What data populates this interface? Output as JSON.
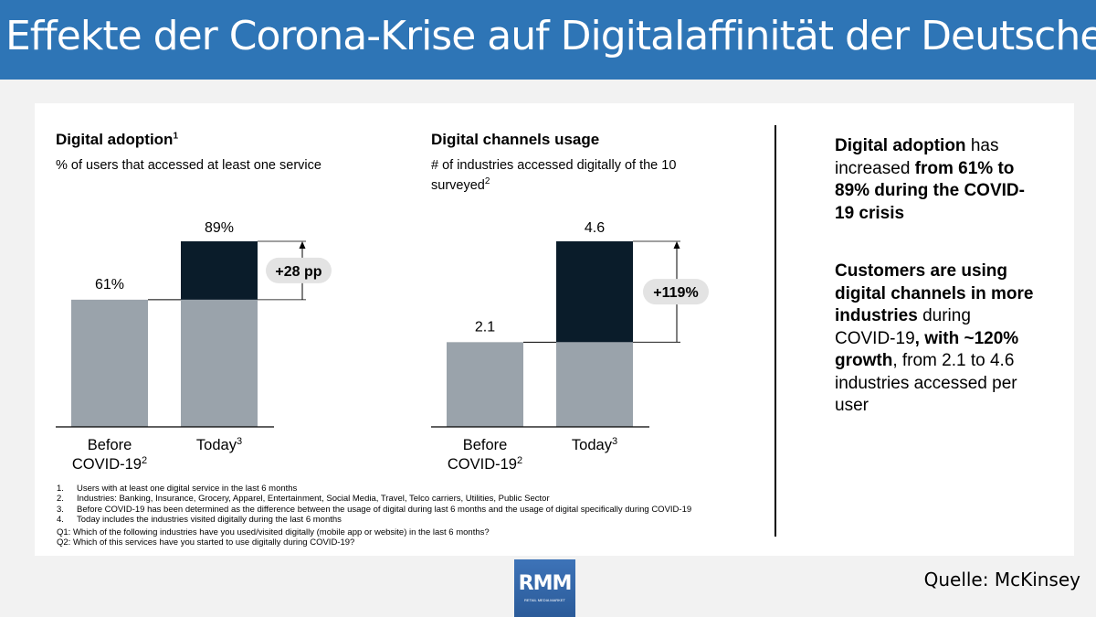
{
  "banner": {
    "title": "Effekte der Corona-Krise auf Digitalaffinität der Deutschen"
  },
  "charts": {
    "left": {
      "title": "Digital adoption",
      "title_sup": "1",
      "subtitle": "% of users that accessed at least one service"
    },
    "right": {
      "title": "Digital channels usage",
      "subtitle_line1": "# of industries accessed digitally of the 10",
      "subtitle_line2": "surveyed",
      "subtitle_sup": "2"
    }
  },
  "chart_data": [
    {
      "type": "bar",
      "title": "Digital adoption",
      "categories": [
        "Before COVID-19",
        "Today"
      ],
      "category_sups": [
        "2",
        "3"
      ],
      "values": [
        61,
        89
      ],
      "value_labels": [
        "61%",
        "89%"
      ],
      "delta_label": "+28 pp",
      "ylim": [
        0,
        100
      ],
      "colors": {
        "base": "#9aa3ab",
        "increase": "#0a1c2a"
      }
    },
    {
      "type": "bar",
      "title": "Digital channels usage",
      "categories": [
        "Before COVID-19",
        "Today"
      ],
      "category_sups": [
        "2",
        "3"
      ],
      "values": [
        2.1,
        4.6
      ],
      "value_labels": [
        "2.1",
        "4.6"
      ],
      "delta_label": "+119%",
      "ylim": [
        0,
        5.6
      ],
      "colors": {
        "base": "#9aa3ab",
        "increase": "#0a1c2a"
      }
    }
  ],
  "side": {
    "block1": {
      "b1": "Digital adoption",
      "t1": " has increased ",
      "b2": "from 61% to 89% during the COVID-19 crisis"
    },
    "block2": {
      "b1": "Customers are using digital channels in more industries",
      "t1": " during COVID-19",
      "b2": ", with ~120% growth",
      "t2": ", from 2.1 to 4.6 industries accessed per user"
    }
  },
  "footnotes": [
    {
      "num": "1.",
      "text": "Users with at least one digital service in the last 6 months"
    },
    {
      "num": "2.",
      "text": "Industries: Banking, Insurance, Grocery, Apparel, Entertainment, Social Media, Travel, Telco carriers, Utilities, Public Sector"
    },
    {
      "num": "3.",
      "text": "Before COVID-19 has been determined as the difference between the usage of digital during last 6 months and the usage of digital specifically during COVID-19"
    },
    {
      "num": "4.",
      "text": "Today includes the industries visited digitally during the last 6 months"
    }
  ],
  "questions": [
    "Q1: Which of the following industries have you used/visited digitally (mobile app or website) in the last 6 months?",
    "Q2: Which of this services have you started to use digitally during COVID-19?"
  ],
  "logo": {
    "text": "RMM",
    "subtext": "RETAIL MEDIA MARKET"
  },
  "source": "Quelle: McKinsey"
}
